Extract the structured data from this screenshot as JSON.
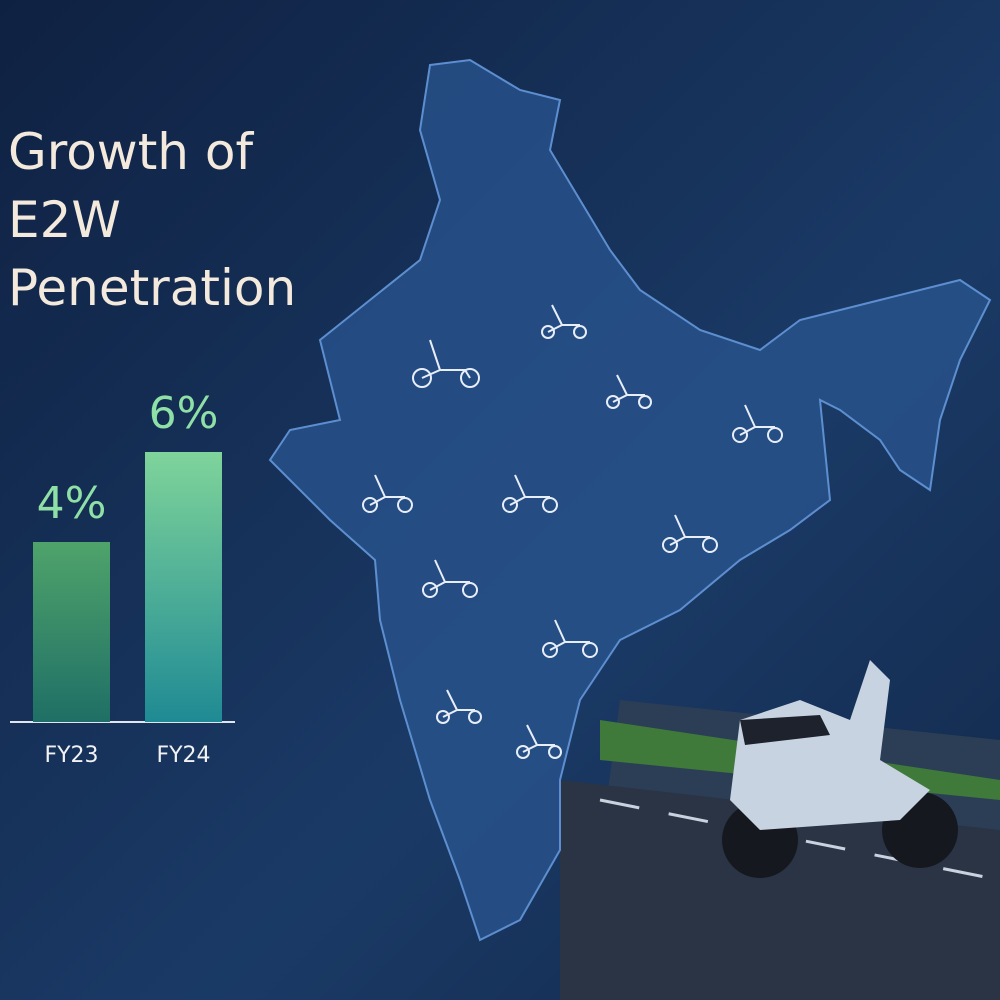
{
  "chart_data": {
    "type": "bar",
    "title": "Growth of E2W Penetration",
    "categories": [
      "FY23",
      "FY24"
    ],
    "values": [
      4,
      6
    ],
    "value_labels": [
      "4%",
      "6%"
    ]
  }
}
